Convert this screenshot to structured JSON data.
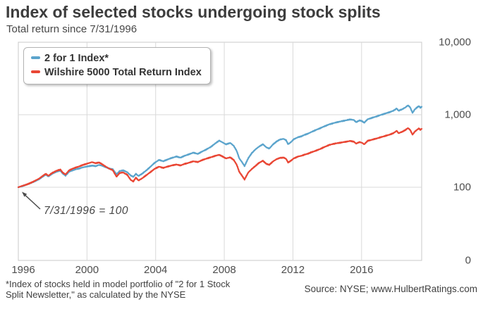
{
  "header": {
    "title": "Index of selected stocks undergoing stock splits",
    "subtitle": "Total return since 7/31/1996"
  },
  "legend": {
    "items": [
      {
        "label": "2 for 1 Index*",
        "color": "#5ba4cc"
      },
      {
        "label": "Wilshire 5000 Total Return Index",
        "color": "#e94634"
      }
    ]
  },
  "annotation": {
    "text": "7/31/1996 = 100"
  },
  "footnote": {
    "line1": "*Index of stocks held in model portfolio of \"2 for 1 Stock",
    "line2": "Split Newsletter,\" as calculated by the NYSE"
  },
  "source": "Source: NYSE; www.HulbertRatings.com",
  "colors": {
    "grid": "#d9d9d9",
    "plot_border": "#c8c8c8",
    "arrow": "#4d4d4d"
  },
  "chart_data": {
    "type": "line",
    "title": "Index of selected stocks undergoing stock splits",
    "subtitle": "Total return since 7/31/1996",
    "x_axis": {
      "range": [
        1996,
        2019.5
      ],
      "ticks": [
        1996,
        2000,
        2004,
        2008,
        2012,
        2016
      ],
      "tick_labels": [
        "1996",
        "2000",
        "2004",
        "2008",
        "2012",
        "2016"
      ]
    },
    "y_axis": {
      "scale": "log",
      "tick_values": [
        10000,
        1000,
        100,
        0
      ],
      "tick_labels": [
        "10,000",
        "1,000",
        "100",
        "0"
      ],
      "position": "right",
      "grid": true,
      "base_note": "7/31/1996 = 100"
    },
    "legend_position": "top-left",
    "series": [
      {
        "name": "2 for 1 Index*",
        "color": "#5ba4cc",
        "points": [
          [
            1996.0,
            100
          ],
          [
            1996.2,
            103
          ],
          [
            1996.4,
            107
          ],
          [
            1996.6,
            111
          ],
          [
            1996.8,
            116
          ],
          [
            1997.0,
            122
          ],
          [
            1997.2,
            129
          ],
          [
            1997.4,
            139
          ],
          [
            1997.6,
            149
          ],
          [
            1997.75,
            141
          ],
          [
            1997.95,
            152
          ],
          [
            1998.2,
            163
          ],
          [
            1998.45,
            169
          ],
          [
            1998.6,
            153
          ],
          [
            1998.75,
            145
          ],
          [
            1998.95,
            163
          ],
          [
            1999.2,
            173
          ],
          [
            1999.45,
            179
          ],
          [
            1999.7,
            186
          ],
          [
            1999.9,
            191
          ],
          [
            2000.1,
            195
          ],
          [
            2000.3,
            199
          ],
          [
            2000.5,
            195
          ],
          [
            2000.7,
            203
          ],
          [
            2000.9,
            197
          ],
          [
            2001.1,
            189
          ],
          [
            2001.3,
            181
          ],
          [
            2001.5,
            177
          ],
          [
            2001.72,
            151
          ],
          [
            2001.9,
            167
          ],
          [
            2002.1,
            171
          ],
          [
            2002.35,
            161
          ],
          [
            2002.55,
            145
          ],
          [
            2002.7,
            139
          ],
          [
            2002.85,
            153
          ],
          [
            2003.0,
            143
          ],
          [
            2003.2,
            153
          ],
          [
            2003.45,
            170
          ],
          [
            2003.7,
            192
          ],
          [
            2003.95,
            218
          ],
          [
            2004.2,
            238
          ],
          [
            2004.45,
            228
          ],
          [
            2004.7,
            242
          ],
          [
            2004.95,
            254
          ],
          [
            2005.2,
            265
          ],
          [
            2005.45,
            256
          ],
          [
            2005.7,
            272
          ],
          [
            2005.95,
            285
          ],
          [
            2006.2,
            300
          ],
          [
            2006.45,
            288
          ],
          [
            2006.7,
            310
          ],
          [
            2006.95,
            332
          ],
          [
            2007.2,
            358
          ],
          [
            2007.45,
            398
          ],
          [
            2007.7,
            440
          ],
          [
            2007.9,
            415
          ],
          [
            2008.1,
            390
          ],
          [
            2008.35,
            408
          ],
          [
            2008.55,
            372
          ],
          [
            2008.72,
            318
          ],
          [
            2008.88,
            248
          ],
          [
            2009.0,
            228
          ],
          [
            2009.18,
            196
          ],
          [
            2009.4,
            252
          ],
          [
            2009.6,
            295
          ],
          [
            2009.8,
            330
          ],
          [
            2010.0,
            360
          ],
          [
            2010.25,
            392
          ],
          [
            2010.45,
            355
          ],
          [
            2010.62,
            342
          ],
          [
            2010.85,
            392
          ],
          [
            2011.05,
            428
          ],
          [
            2011.25,
            455
          ],
          [
            2011.45,
            465
          ],
          [
            2011.6,
            445
          ],
          [
            2011.72,
            392
          ],
          [
            2011.88,
            418
          ],
          [
            2012.05,
            460
          ],
          [
            2012.3,
            490
          ],
          [
            2012.5,
            505
          ],
          [
            2012.65,
            525
          ],
          [
            2012.9,
            552
          ],
          [
            2013.1,
            582
          ],
          [
            2013.35,
            618
          ],
          [
            2013.6,
            655
          ],
          [
            2013.85,
            695
          ],
          [
            2014.1,
            735
          ],
          [
            2014.35,
            765
          ],
          [
            2014.6,
            792
          ],
          [
            2014.85,
            815
          ],
          [
            2015.1,
            838
          ],
          [
            2015.35,
            862
          ],
          [
            2015.55,
            845
          ],
          [
            2015.68,
            790
          ],
          [
            2015.88,
            835
          ],
          [
            2016.05,
            812
          ],
          [
            2016.15,
            775
          ],
          [
            2016.35,
            865
          ],
          [
            2016.6,
            905
          ],
          [
            2016.85,
            945
          ],
          [
            2017.1,
            990
          ],
          [
            2017.35,
            1035
          ],
          [
            2017.6,
            1080
          ],
          [
            2017.85,
            1135
          ],
          [
            2018.05,
            1220
          ],
          [
            2018.15,
            1135
          ],
          [
            2018.35,
            1185
          ],
          [
            2018.55,
            1260
          ],
          [
            2018.7,
            1345
          ],
          [
            2018.82,
            1275
          ],
          [
            2018.97,
            1065
          ],
          [
            2019.1,
            1185
          ],
          [
            2019.25,
            1270
          ],
          [
            2019.35,
            1315
          ],
          [
            2019.42,
            1250
          ],
          [
            2019.5,
            1290
          ]
        ]
      },
      {
        "name": "Wilshire 5000 Total Return Index",
        "color": "#e94634",
        "points": [
          [
            1996.0,
            100
          ],
          [
            1996.2,
            104
          ],
          [
            1996.4,
            107
          ],
          [
            1996.6,
            112
          ],
          [
            1996.8,
            117
          ],
          [
            1997.0,
            124
          ],
          [
            1997.2,
            131
          ],
          [
            1997.4,
            142
          ],
          [
            1997.6,
            153
          ],
          [
            1997.75,
            144
          ],
          [
            1997.95,
            156
          ],
          [
            1998.2,
            168
          ],
          [
            1998.45,
            175
          ],
          [
            1998.6,
            158
          ],
          [
            1998.75,
            150
          ],
          [
            1998.95,
            170
          ],
          [
            1999.2,
            182
          ],
          [
            1999.45,
            190
          ],
          [
            1999.7,
            200
          ],
          [
            1999.9,
            208
          ],
          [
            2000.1,
            215
          ],
          [
            2000.3,
            222
          ],
          [
            2000.5,
            214
          ],
          [
            2000.7,
            220
          ],
          [
            2000.9,
            206
          ],
          [
            2001.1,
            192
          ],
          [
            2001.3,
            180
          ],
          [
            2001.5,
            172
          ],
          [
            2001.72,
            140
          ],
          [
            2001.9,
            157
          ],
          [
            2002.1,
            160
          ],
          [
            2002.35,
            148
          ],
          [
            2002.55,
            126
          ],
          [
            2002.7,
            120
          ],
          [
            2002.85,
            136
          ],
          [
            2003.0,
            124
          ],
          [
            2003.2,
            132
          ],
          [
            2003.45,
            146
          ],
          [
            2003.7,
            162
          ],
          [
            2003.95,
            180
          ],
          [
            2004.2,
            192
          ],
          [
            2004.45,
            185
          ],
          [
            2004.7,
            193
          ],
          [
            2004.95,
            200
          ],
          [
            2005.2,
            206
          ],
          [
            2005.45,
            200
          ],
          [
            2005.7,
            210
          ],
          [
            2005.95,
            218
          ],
          [
            2006.2,
            228
          ],
          [
            2006.45,
            222
          ],
          [
            2006.7,
            236
          ],
          [
            2006.95,
            248
          ],
          [
            2007.2,
            258
          ],
          [
            2007.45,
            270
          ],
          [
            2007.7,
            280
          ],
          [
            2007.9,
            265
          ],
          [
            2008.1,
            250
          ],
          [
            2008.35,
            258
          ],
          [
            2008.55,
            238
          ],
          [
            2008.72,
            205
          ],
          [
            2008.88,
            162
          ],
          [
            2009.0,
            148
          ],
          [
            2009.18,
            128
          ],
          [
            2009.4,
            160
          ],
          [
            2009.6,
            178
          ],
          [
            2009.8,
            195
          ],
          [
            2010.0,
            215
          ],
          [
            2010.25,
            232
          ],
          [
            2010.45,
            210
          ],
          [
            2010.62,
            204
          ],
          [
            2010.85,
            228
          ],
          [
            2011.05,
            244
          ],
          [
            2011.25,
            254
          ],
          [
            2011.45,
            257
          ],
          [
            2011.6,
            246
          ],
          [
            2011.72,
            220
          ],
          [
            2011.88,
            232
          ],
          [
            2012.05,
            250
          ],
          [
            2012.3,
            265
          ],
          [
            2012.5,
            272
          ],
          [
            2012.65,
            280
          ],
          [
            2012.9,
            292
          ],
          [
            2013.1,
            305
          ],
          [
            2013.35,
            320
          ],
          [
            2013.6,
            338
          ],
          [
            2013.85,
            360
          ],
          [
            2014.1,
            382
          ],
          [
            2014.35,
            396
          ],
          [
            2014.6,
            406
          ],
          [
            2014.85,
            415
          ],
          [
            2015.1,
            425
          ],
          [
            2015.35,
            435
          ],
          [
            2015.55,
            425
          ],
          [
            2015.68,
            400
          ],
          [
            2015.88,
            420
          ],
          [
            2016.05,
            408
          ],
          [
            2016.15,
            390
          ],
          [
            2016.35,
            435
          ],
          [
            2016.6,
            452
          ],
          [
            2016.85,
            468
          ],
          [
            2017.1,
            488
          ],
          [
            2017.35,
            508
          ],
          [
            2017.6,
            528
          ],
          [
            2017.85,
            556
          ],
          [
            2018.05,
            600
          ],
          [
            2018.15,
            556
          ],
          [
            2018.35,
            580
          ],
          [
            2018.55,
            615
          ],
          [
            2018.7,
            655
          ],
          [
            2018.82,
            622
          ],
          [
            2018.97,
            532
          ],
          [
            2019.1,
            585
          ],
          [
            2019.25,
            625
          ],
          [
            2019.35,
            648
          ],
          [
            2019.42,
            618
          ],
          [
            2019.5,
            640
          ]
        ]
      }
    ]
  }
}
